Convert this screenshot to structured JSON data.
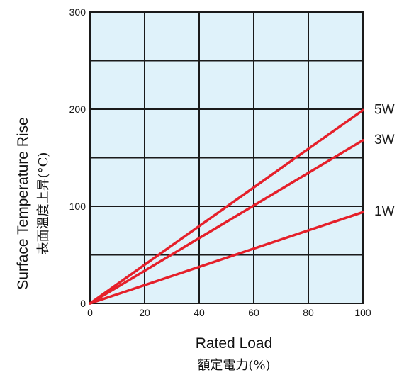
{
  "chart_data": {
    "type": "line",
    "xlabel": "Rated Load",
    "xlabel_sub": "額定電力(%)",
    "ylabel": "Surface Temperature Rise",
    "ylabel_sub": "表面溫度上昇(°C)",
    "xlim": [
      0,
      100
    ],
    "ylim": [
      0,
      300
    ],
    "x_ticks": [
      "0",
      "20",
      "40",
      "60",
      "80",
      "100"
    ],
    "y_ticks": [
      "0",
      "100",
      "200",
      "300"
    ],
    "grid": true,
    "grid_minor_y": [
      50,
      150,
      250
    ],
    "legend": "inline-right",
    "colors": {
      "plot_bg": "#dff2fa",
      "grid": "#1a1a1a",
      "line": "#e5202a"
    },
    "series": [
      {
        "name": "5W",
        "x": [
          0,
          100
        ],
        "y": [
          0,
          199
        ]
      },
      {
        "name": "3W",
        "x": [
          0,
          100
        ],
        "y": [
          0,
          168
        ]
      },
      {
        "name": "1W",
        "x": [
          0,
          100
        ],
        "y": [
          0,
          94
        ]
      }
    ]
  }
}
